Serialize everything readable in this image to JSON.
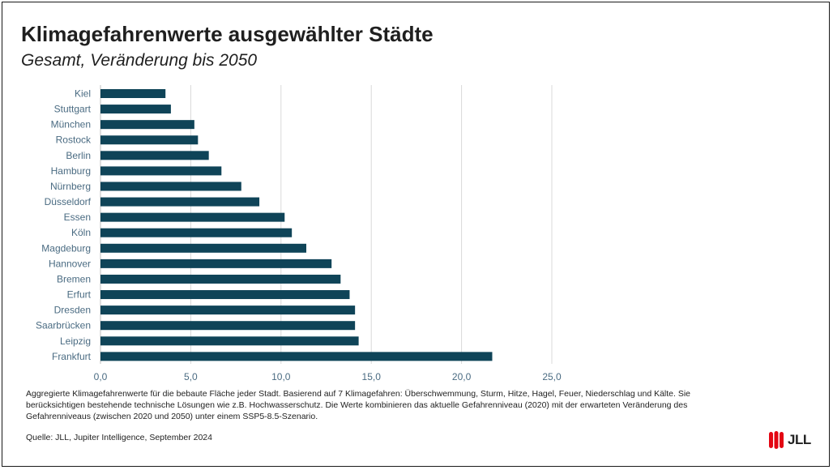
{
  "header": {
    "title": "Klimagefahrenwerte ausgewählter Städte",
    "subtitle": "Gesamt, Veränderung bis 2050"
  },
  "chart_data": {
    "type": "bar",
    "orientation": "horizontal",
    "categories": [
      "Kiel",
      "Stuttgart",
      "München",
      "Rostock",
      "Berlin",
      "Hamburg",
      "Nürnberg",
      "Düsseldorf",
      "Essen",
      "Köln",
      "Magdeburg",
      "Hannover",
      "Bremen",
      "Erfurt",
      "Dresden",
      "Saarbrücken",
      "Leipzig",
      "Frankfurt"
    ],
    "values": [
      3.6,
      3.9,
      5.2,
      5.4,
      6.0,
      6.7,
      7.8,
      8.8,
      10.2,
      10.6,
      11.4,
      12.8,
      13.3,
      13.8,
      14.1,
      14.1,
      14.3,
      21.7
    ],
    "xticks": [
      "0,0",
      "5,0",
      "10,0",
      "15,0",
      "20,0",
      "25,0"
    ],
    "xlim": [
      0,
      25
    ],
    "grid": true,
    "bar_color": "#0f4458"
  },
  "footer": {
    "note": "Aggregierte Klimagefahrenwerte für die bebaute Fläche jeder Stadt. Basierend auf 7 Klimagefahren: Überschwemmung, Sturm, Hitze, Hagel, Feuer, Niederschlag und Kälte. Sie berücksichtigen bestehende technische Lösungen wie z.B. Hochwasserschutz. Die Werte kombinieren das aktuelle Gefahrenniveau (2020) mit der erwarteten Veränderung des Gefahrenniveaus (zwischen 2020 und 2050) unter einem SSP5-8.5-Szenario.",
    "source": "Quelle: JLL, Jupiter Intelligence, September 2024"
  },
  "logo": {
    "text": "JLL",
    "color": "#e30613"
  }
}
